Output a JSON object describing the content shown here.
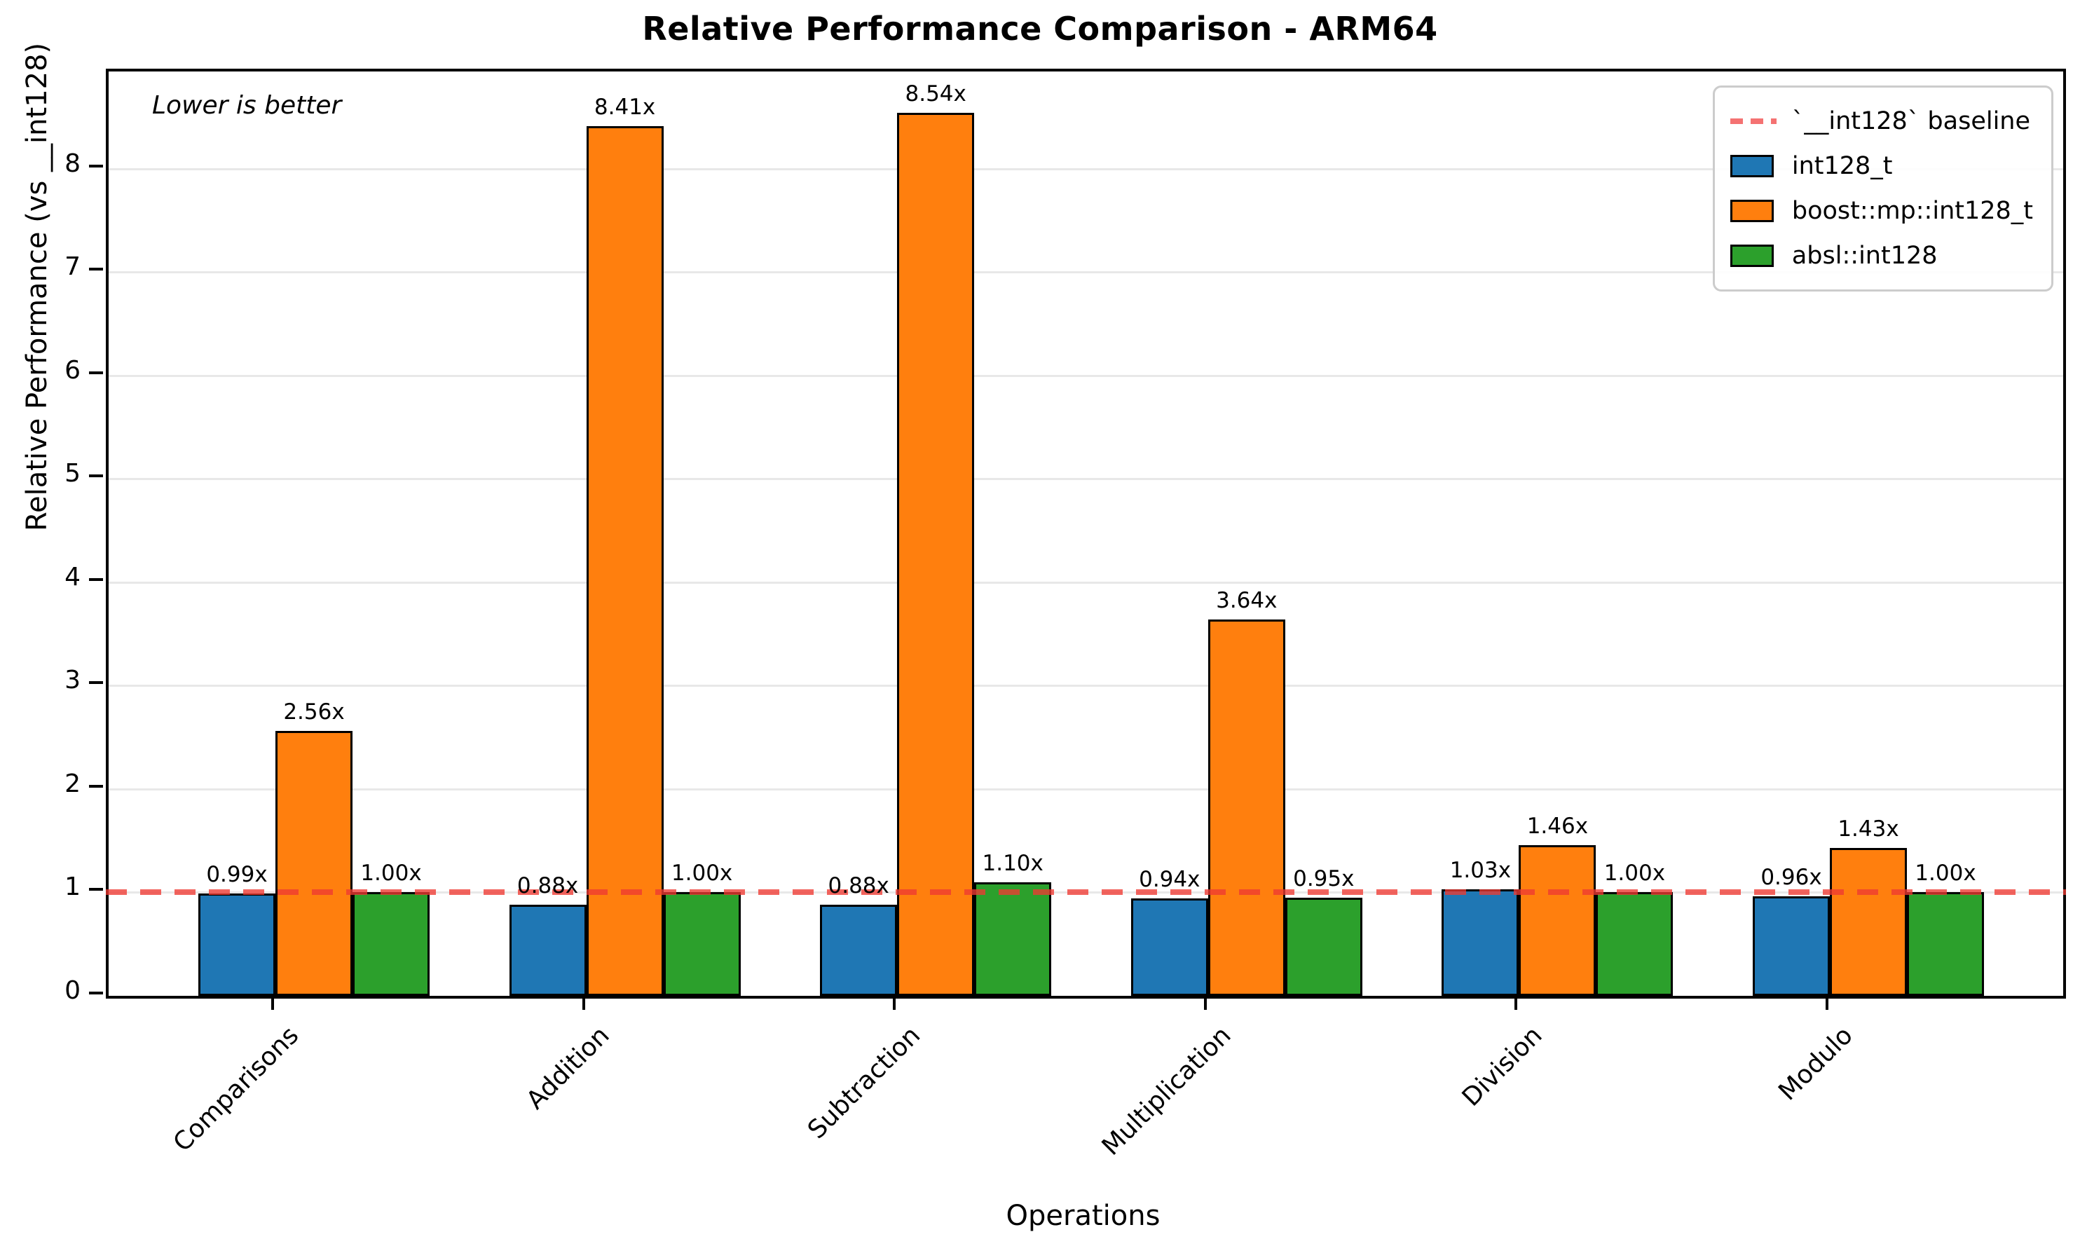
{
  "chart_data": {
    "type": "bar",
    "title": "Relative Performance Comparison - ARM64",
    "xlabel": "Operations",
    "ylabel": "Relative Performance (vs __int128)",
    "annotation": "Lower is better",
    "categories": [
      "Comparisons",
      "Addition",
      "Subtraction",
      "Multiplication",
      "Division",
      "Modulo"
    ],
    "series": [
      {
        "name": "int128_t",
        "color": "#1f77b4",
        "values": [
          0.99,
          0.88,
          0.88,
          0.94,
          1.03,
          0.96
        ],
        "labels": [
          "0.99x",
          "0.88x",
          "0.88x",
          "0.94x",
          "1.03x",
          "0.96x"
        ]
      },
      {
        "name": "boost::mp::int128_t",
        "color": "#ff7f0e",
        "values": [
          2.56,
          8.41,
          8.54,
          3.64,
          1.46,
          1.43
        ],
        "labels": [
          "2.56x",
          "8.41x",
          "8.54x",
          "3.64x",
          "1.46x",
          "1.43x"
        ]
      },
      {
        "name": "absl::int128",
        "color": "#2ca02c",
        "values": [
          1.0,
          1.0,
          1.1,
          0.95,
          1.0,
          1.0
        ],
        "labels": [
          "1.00x",
          "1.00x",
          "1.10x",
          "0.95x",
          "1.00x",
          "1.00x"
        ]
      }
    ],
    "baseline": {
      "value": 1.0,
      "label": "`__int128` baseline",
      "color": "#ef3a32"
    },
    "yticks": [
      0,
      1,
      2,
      3,
      4,
      5,
      6,
      7,
      8
    ],
    "ylim": [
      0,
      8.94
    ],
    "grid": "horizontal",
    "legend_position": "top-right"
  }
}
